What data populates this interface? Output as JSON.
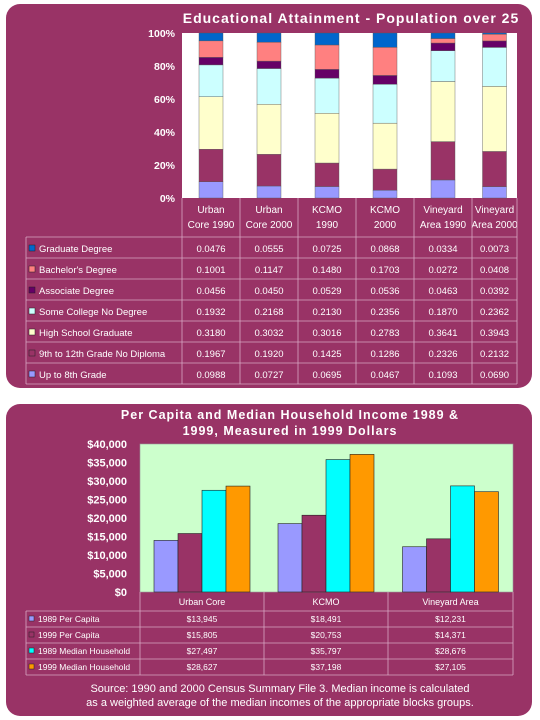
{
  "chart_data": [
    {
      "type": "bar",
      "stacked": true,
      "percent_stacked": true,
      "title": "Educational Attainment - Population over 25",
      "categories": [
        [
          "Urban",
          "Core 1990"
        ],
        [
          "Urban",
          "Core 2000"
        ],
        [
          "KCMO",
          "1990"
        ],
        [
          "KCMO",
          "2000"
        ],
        [
          "Vineyard",
          "Area 1990"
        ],
        [
          "Vineyard",
          "Area 2000"
        ]
      ],
      "yticks": [
        "0%",
        "20%",
        "40%",
        "60%",
        "80%",
        "100%"
      ],
      "ylim": [
        0,
        1
      ],
      "series": [
        {
          "name": "Up to 8th Grade",
          "color": "#9999ff",
          "values": [
            "0.0988",
            "0.0727",
            "0.0695",
            "0.0467",
            "0.1093",
            "0.0690"
          ]
        },
        {
          "name": "9th to 12th Grade No Diploma",
          "color": "#993366",
          "values": [
            "0.1967",
            "0.1920",
            "0.1425",
            "0.1286",
            "0.2326",
            "0.2132"
          ]
        },
        {
          "name": "High School Graduate",
          "color": "#ffffcc",
          "values": [
            "0.3180",
            "0.3032",
            "0.3016",
            "0.2783",
            "0.3641",
            "0.3943"
          ]
        },
        {
          "name": "Some College No Degree",
          "color": "#ccffff",
          "values": [
            "0.1932",
            "0.2168",
            "0.2130",
            "0.2356",
            "0.1870",
            "0.2362"
          ]
        },
        {
          "name": "Associate Degree",
          "color": "#660066",
          "values": [
            "0.0456",
            "0.0450",
            "0.0529",
            "0.0536",
            "0.0463",
            "0.0392"
          ]
        },
        {
          "name": "Bachelor's Degree",
          "color": "#ff8080",
          "values": [
            "0.1001",
            "0.1147",
            "0.1480",
            "0.1703",
            "0.0272",
            "0.0408"
          ]
        },
        {
          "name": "Graduate Degree",
          "color": "#0066cc",
          "values": [
            "0.0476",
            "0.0555",
            "0.0725",
            "0.0868",
            "0.0334",
            "0.0073"
          ]
        }
      ],
      "table_order": [
        6,
        5,
        4,
        3,
        2,
        1,
        0
      ]
    },
    {
      "type": "bar",
      "title": [
        "Per Capita and Median Household Income 1989 &",
        "1999, Measured in 1999 Dollars"
      ],
      "categories": [
        "Urban Core",
        "KCMO",
        "Vineyard Area"
      ],
      "ylim": [
        0,
        40000
      ],
      "yticks": [
        "$0",
        "$5,000",
        "$10,000",
        "$15,000",
        "$20,000",
        "$25,000",
        "$30,000",
        "$35,000",
        "$40,000"
      ],
      "grid": false,
      "series": [
        {
          "name": "1989 Per Capita",
          "color": "#9999ff",
          "values": [
            13945,
            18491,
            12231
          ],
          "labels": [
            "$13,945",
            "$18,491",
            "$12,231"
          ]
        },
        {
          "name": "1999 Per Capita",
          "color": "#993366",
          "values": [
            15805,
            20753,
            14371
          ],
          "labels": [
            "$15,805",
            "$20,753",
            "$14,371"
          ]
        },
        {
          "name": "1989 Median Household",
          "color": "#00ffff",
          "values": [
            27497,
            35797,
            28676
          ],
          "labels": [
            "$27,497",
            "$35,797",
            "$28,676"
          ]
        },
        {
          "name": "1999 Median Household",
          "color": "#ff9900",
          "values": [
            28627,
            37198,
            27105
          ],
          "labels": [
            "$28,627",
            "$37,198",
            "$27,105"
          ]
        }
      ]
    }
  ],
  "source_lines": [
    "Source: 1990 and 2000 Census Summary File 3. Median income is calculated",
    "as a weighted average of the median incomes of the appropriate blocks groups."
  ]
}
